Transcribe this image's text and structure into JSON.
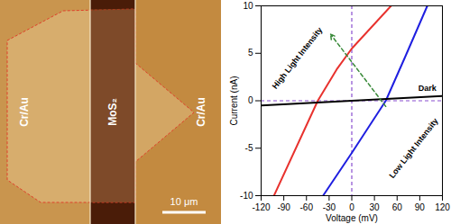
{
  "image_panel": {
    "labels": [
      "Cr/Au",
      "MoS₂",
      "Cr/Au"
    ],
    "scale_bar": "10 μm"
  },
  "chart_data": {
    "type": "line",
    "x_label": "Voltage (mV)",
    "y_label": "Current (nA)",
    "xlim": [
      -120,
      120
    ],
    "xticks": [
      -120,
      -90,
      -60,
      -30,
      0,
      30,
      60,
      90,
      120
    ],
    "ylim": [
      -10,
      10
    ],
    "yticks": [
      -10,
      -5,
      0,
      5,
      10
    ],
    "series": [
      {
        "name": "High Light Intensity",
        "color": "#e8322e",
        "x": [
          -103,
          -45,
          -20,
          0,
          52
        ],
        "values": [
          -10,
          0,
          3.3,
          5.5,
          10
        ],
        "label_at": [
          -72,
          4.5
        ]
      },
      {
        "name": "Low Light Intensity",
        "color": "#1f1fe0",
        "x": [
          -38,
          0,
          45,
          70,
          100
        ],
        "values": [
          -10,
          -5.5,
          0,
          4.5,
          10
        ],
        "label_at": [
          82,
          -5
        ]
      },
      {
        "name": "Dark",
        "color": "#000000",
        "x": [
          -120,
          120
        ],
        "values": [
          -0.5,
          0.5
        ],
        "label_at": [
          100,
          1.3
        ]
      }
    ],
    "reference_lines": [
      {
        "axis": "x",
        "value": 0,
        "color": "#8a4fd0"
      },
      {
        "axis": "y",
        "value": 0,
        "color": "#8a4fd0"
      }
    ],
    "arrow": {
      "from": [
        45,
        -0.6
      ],
      "to": [
        -28,
        7
      ],
      "color": "#3a8a3a"
    }
  }
}
